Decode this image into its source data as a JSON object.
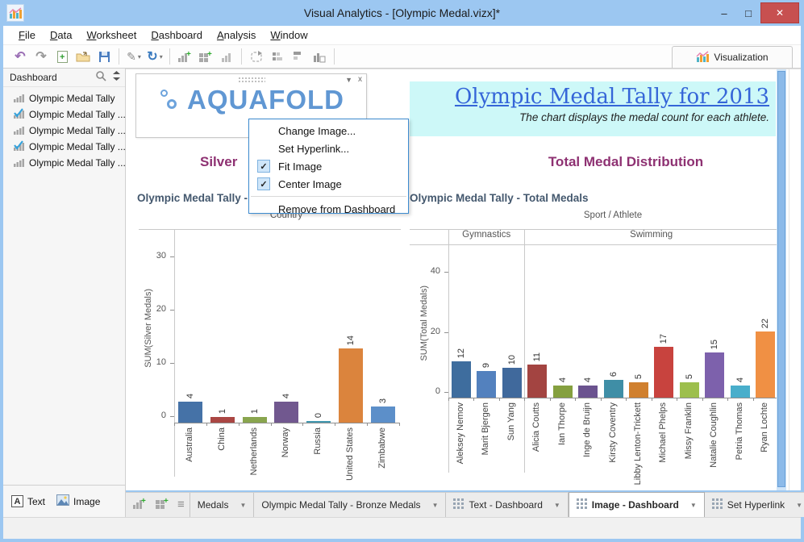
{
  "window": {
    "title": "Visual Analytics - [Olympic Medal.vizx]*",
    "controls": [
      {
        "name": "minimize",
        "glyph": "–"
      },
      {
        "name": "maximize",
        "glyph": "□"
      },
      {
        "name": "close",
        "glyph": "✕"
      }
    ]
  },
  "menubar": {
    "items": [
      {
        "label": "File",
        "accel": 0
      },
      {
        "label": "Data",
        "accel": 0
      },
      {
        "label": "Worksheet",
        "accel": 0
      },
      {
        "label": "Dashboard",
        "accel": 0
      },
      {
        "label": "Analysis",
        "accel": 0
      },
      {
        "label": "Window",
        "accel": 0
      }
    ]
  },
  "toolbar": {
    "items": [
      {
        "name": "undo"
      },
      {
        "name": "redo"
      },
      {
        "name": "new-file"
      },
      {
        "name": "open-folder"
      },
      {
        "name": "save"
      },
      {
        "name": "sep"
      },
      {
        "name": "format-brush",
        "caret": true
      },
      {
        "name": "refresh",
        "caret": true
      },
      {
        "name": "sep"
      },
      {
        "name": "add-worksheet"
      },
      {
        "name": "add-dashboard"
      },
      {
        "name": "duplicate-worksheet"
      },
      {
        "name": "sep"
      },
      {
        "name": "refresh-layout"
      },
      {
        "name": "sort-ascending"
      },
      {
        "name": "sort-descending"
      },
      {
        "name": "chart-export"
      },
      {
        "name": "sep"
      }
    ],
    "visualization_label": "Visualization"
  },
  "sidebar": {
    "header": "Dashboard",
    "items": [
      {
        "label": "Olympic Medal Tally",
        "checked": false
      },
      {
        "label": "Olympic Medal Tally ...",
        "checked": true
      },
      {
        "label": "Olympic Medal Tally ...",
        "checked": false
      },
      {
        "label": "Olympic Medal Tally ...",
        "checked": true
      },
      {
        "label": "Olympic Medal Tally ...",
        "checked": false
      }
    ],
    "footer": {
      "text_label": "Text",
      "image_label": "Image"
    }
  },
  "dashboard": {
    "banner": {
      "title": "Olympic Medal Tally for 2013",
      "subtitle": "The chart displays the medal count for each athlete."
    },
    "left_heading": "Silver",
    "right_heading": "Total Medal Distribution"
  },
  "context_menu": {
    "items": [
      {
        "label": "Change Image...",
        "checked": null
      },
      {
        "label": "Set Hyperlink...",
        "checked": null
      },
      {
        "label": "Fit Image",
        "checked": true
      },
      {
        "label": "Center Image",
        "checked": true
      },
      {
        "separator": true
      },
      {
        "label": "Remove from Dashboard",
        "checked": null
      }
    ]
  },
  "chart_data": [
    {
      "type": "bar",
      "title": "Olympic Medal Tally - S",
      "xlabel": "Country",
      "xlabel_position": "top",
      "ylabel": "SUM(Silver Medals)",
      "categories": [
        "Australia",
        "China",
        "Netherlands",
        "Norway",
        "Russia",
        "United States",
        "Zimbabwe"
      ],
      "values": [
        4,
        1,
        1,
        4,
        0,
        14,
        3
      ],
      "colors": [
        "#4572A7",
        "#AA4643",
        "#89A54E",
        "#71588F",
        "#4198AF",
        "#DB843D",
        "#5C8FC9"
      ],
      "yticks": [
        0,
        10,
        20,
        30
      ],
      "ylim": [
        0,
        36
      ],
      "grid": false
    },
    {
      "type": "bar",
      "title": "Olympic Medal Tally - Total Medals",
      "xlabel": "Sport / Athlete",
      "xlabel_position": "top",
      "ylabel": "SUM(Total Medals)",
      "groups": [
        {
          "name": "Gymnastics",
          "count": 3
        },
        {
          "name": "Swimming",
          "count": 10
        }
      ],
      "categories": [
        "Aleksey Nemov",
        "Marit Bjergen",
        "Sun Yang",
        "Alicia Coutts",
        "Ian Thorpe",
        "Inge de Bruijn",
        "Kirsty Coventry",
        "Libby Lenton-Trickett",
        "Michael Phelps",
        "Missy Franklin",
        "Natalie Coughlin",
        "Petria Thomas",
        "Ryan Lochte"
      ],
      "values": [
        12,
        9,
        10,
        11,
        4,
        4,
        6,
        5,
        17,
        5,
        15,
        4,
        22
      ],
      "colors": [
        "#3E6D9E",
        "#5381BE",
        "#40699C",
        "#A34441",
        "#85A03F",
        "#6B538F",
        "#3F8EA6",
        "#D0802F",
        "#C8433E",
        "#9DBF4D",
        "#7D61AC",
        "#49AECB",
        "#F09044"
      ],
      "yticks": [
        0,
        20,
        40
      ],
      "ylim": [
        0,
        50
      ],
      "grid": false
    }
  ],
  "tabbar": {
    "left_icons": [
      "add-worksheet",
      "add-dashboard",
      "worksheet-list"
    ],
    "tabs": [
      {
        "label": "Medals",
        "icon": false,
        "active": false
      },
      {
        "label": "Olympic Medal Tally - Bronze Medals",
        "icon": false,
        "active": false
      },
      {
        "label": "Text - Dashboard",
        "icon": true,
        "active": false
      },
      {
        "label": "Image - Dashboard",
        "icon": true,
        "active": true
      },
      {
        "label": "Set Hyperlink",
        "icon": true,
        "active": false
      }
    ]
  }
}
